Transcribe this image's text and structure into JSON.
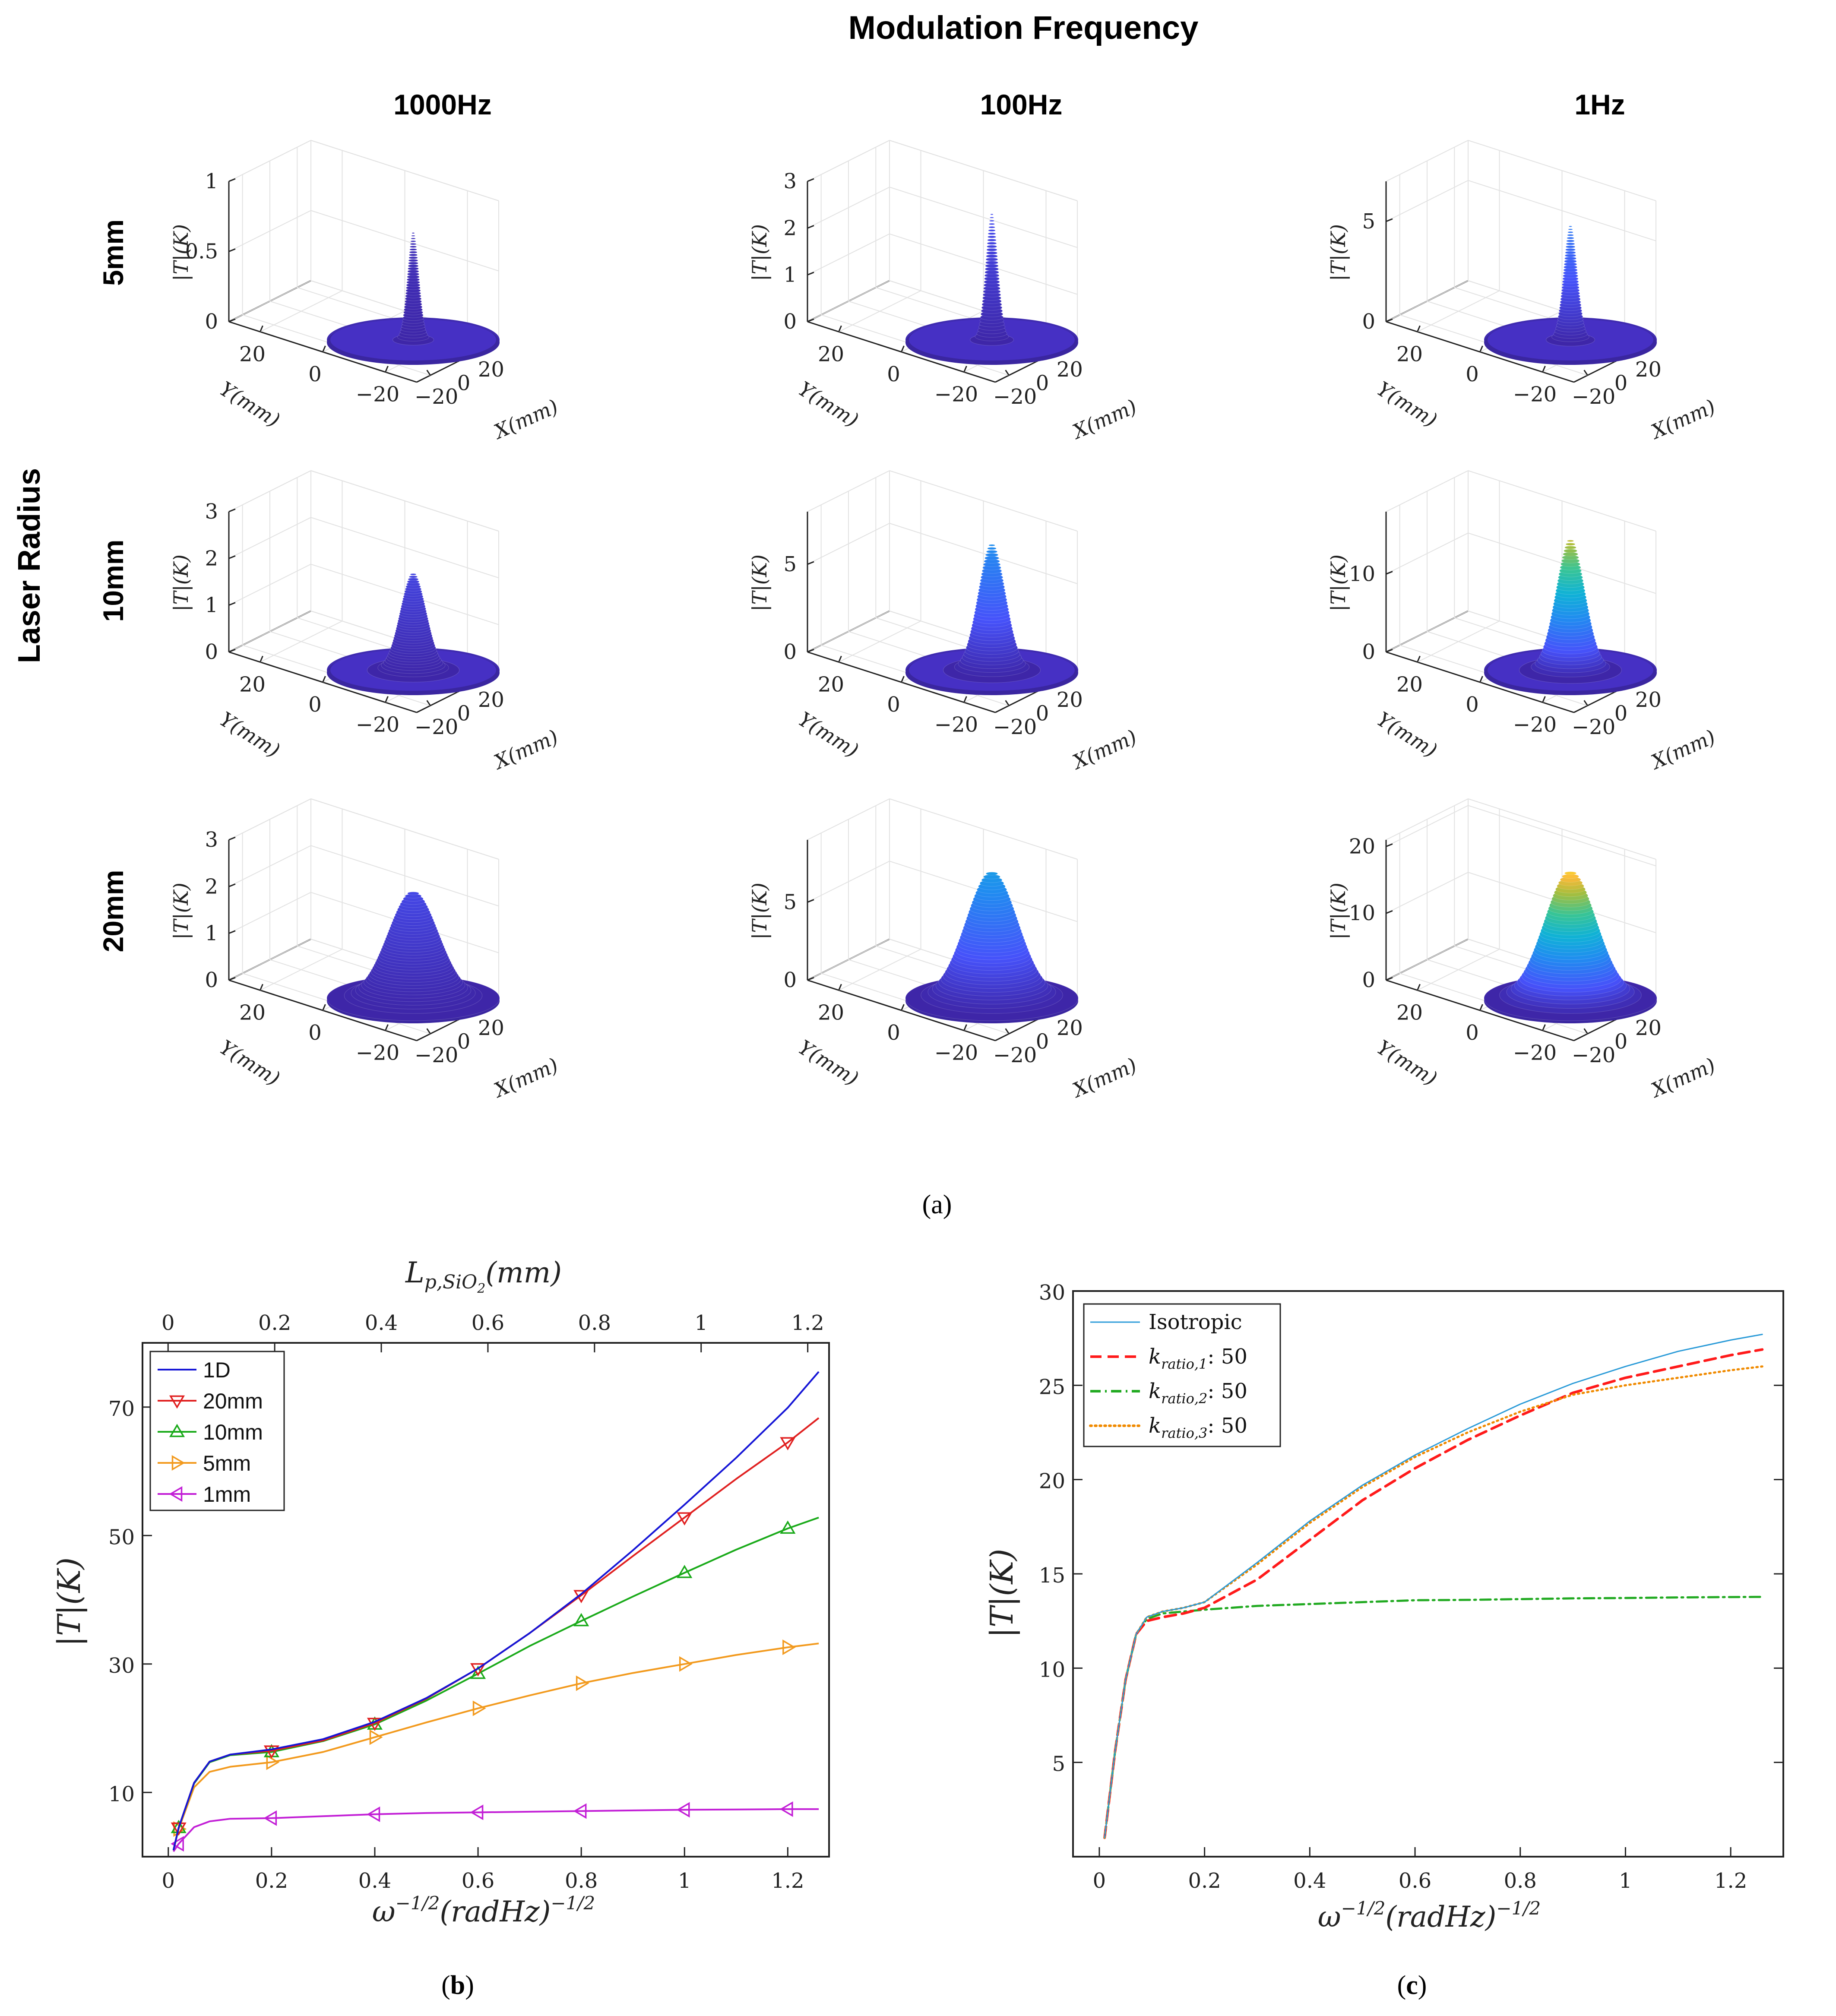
{
  "figure_a": {
    "title": "Modulation Frequency",
    "row_header": "Laser Radius",
    "columns": [
      "1000Hz",
      "100Hz",
      "1Hz"
    ],
    "rows": [
      "5mm",
      "10mm",
      "20mm"
    ],
    "caption": "(a)",
    "z_label": "|T|(K)",
    "x_label": "X(mm)",
    "y_label": "Y(mm)",
    "xy_ticks": [
      "20",
      "0",
      "−20"
    ]
  },
  "figure_b": {
    "caption": "(b)",
    "legend": [
      "1D",
      "20mm",
      "10mm",
      "5mm",
      "1mm"
    ],
    "colors": {
      "1D": "#1515d6",
      "20mm": "#e02020",
      "10mm": "#1aaa1a",
      "5mm": "#f29a1e",
      "1mm": "#c21fd6"
    }
  },
  "figure_c": {
    "caption": "(c)",
    "legend": [
      "Isotropic",
      "k_ratio,1: 50",
      "k_ratio,2: 50",
      "k_ratio,3: 50"
    ],
    "colors": {
      "Isotropic": "#2b9bd8",
      "k1": "#ff1a1a",
      "k2": "#22aa22",
      "k3": "#f08a00"
    }
  },
  "chart_data": [
    {
      "type": "surface3d",
      "title": "Modulation Frequency",
      "panels": [
        {
          "row": "5mm",
          "column": "1000Hz",
          "zlim": [
            0,
            1
          ],
          "zticks": [
            0,
            0.5,
            1
          ],
          "peak": 0.78,
          "sigma_mm": 1.6
        },
        {
          "row": "5mm",
          "column": "100Hz",
          "zlim": [
            0,
            3
          ],
          "zticks": [
            0,
            1,
            2,
            3
          ],
          "peak": 2.75,
          "sigma_mm": 1.7
        },
        {
          "row": "5mm",
          "column": "1Hz",
          "zlim": [
            0,
            7
          ],
          "zticks": [
            0,
            5
          ],
          "peak": 5.8,
          "sigma_mm": 1.9
        },
        {
          "row": "10mm",
          "column": "1000Hz",
          "zlim": [
            0,
            3
          ],
          "zticks": [
            0,
            1,
            2,
            3
          ],
          "peak": 2.1,
          "sigma_mm": 3.6
        },
        {
          "row": "10mm",
          "column": "100Hz",
          "zlim": [
            0,
            8
          ],
          "zticks": [
            0,
            5
          ],
          "peak": 7.3,
          "sigma_mm": 3.8
        },
        {
          "row": "10mm",
          "column": "1Hz",
          "zlim": [
            0,
            18
          ],
          "zticks": [
            0,
            10
          ],
          "peak": 17.0,
          "sigma_mm": 4.0
        },
        {
          "row": "20mm",
          "column": "1000Hz",
          "zlim": [
            0,
            3
          ],
          "zticks": [
            0,
            1,
            2,
            3
          ],
          "peak": 2.3,
          "sigma_mm": 7.0
        },
        {
          "row": "20mm",
          "column": "100Hz",
          "zlim": [
            0,
            9
          ],
          "zticks": [
            0,
            5
          ],
          "peak": 8.2,
          "sigma_mm": 7.2
        },
        {
          "row": "20mm",
          "column": "1Hz",
          "zlim": [
            0,
            21
          ],
          "zticks": [
            0,
            10,
            20
          ],
          "peak": 19.2,
          "sigma_mm": 7.2
        }
      ],
      "xlabel": "X(mm)",
      "ylabel": "Y(mm)",
      "zlabel": "|T|(K)",
      "xlim": [
        -30,
        30
      ],
      "ylim": [
        -30,
        30
      ],
      "xyticks": [
        -20,
        0,
        20
      ]
    },
    {
      "type": "line",
      "xlabel": "ω^{-1/2}(radHz)^{-1/2}",
      "ylabel": "|T|(K)",
      "top_xlabel": "L_p,SiO2(mm)",
      "xlim": [
        -0.05,
        1.28
      ],
      "ylim": [
        0,
        80
      ],
      "xticks": [
        0,
        0.2,
        0.4,
        0.6,
        0.8,
        1,
        1.2
      ],
      "xticklabels": [
        "0",
        "0.2",
        "0.4",
        "0.6",
        "0.8",
        "1",
        "1.2"
      ],
      "yticks": [
        10,
        30,
        50,
        70
      ],
      "top_ticks": [
        "0",
        "0.2",
        "0.4",
        "0.6",
        "0.8",
        "1",
        "1.2"
      ],
      "top_xlim": [
        -0.048,
        1.24
      ],
      "legend_position": "top-left",
      "series": [
        {
          "name": "1D",
          "marker": "none",
          "x": [
            0.01,
            0.02,
            0.05,
            0.08,
            0.12,
            0.2,
            0.3,
            0.4,
            0.5,
            0.6,
            0.7,
            0.8,
            0.9,
            1.0,
            1.1,
            1.2,
            1.26
          ],
          "y": [
            1.0,
            4.5,
            11.5,
            14.8,
            15.9,
            16.7,
            18.3,
            21.0,
            24.7,
            29.3,
            34.8,
            40.9,
            47.7,
            54.8,
            62.1,
            69.9,
            75.5
          ]
        },
        {
          "name": "20mm",
          "marker": "triangle-down",
          "markers_x": [
            0.02,
            0.2,
            0.4,
            0.6,
            0.8,
            1.0,
            1.2
          ],
          "x": [
            0.01,
            0.02,
            0.05,
            0.08,
            0.12,
            0.2,
            0.3,
            0.4,
            0.5,
            0.6,
            0.7,
            0.8,
            0.9,
            1.0,
            1.1,
            1.2,
            1.26
          ],
          "y": [
            1.0,
            4.5,
            11.5,
            14.8,
            15.9,
            16.5,
            18.1,
            20.8,
            24.6,
            29.3,
            34.8,
            40.7,
            46.8,
            52.8,
            58.8,
            64.5,
            68.3
          ]
        },
        {
          "name": "10mm",
          "marker": "triangle-up",
          "markers_x": [
            0.02,
            0.2,
            0.4,
            0.6,
            0.8,
            1.0,
            1.2
          ],
          "x": [
            0.01,
            0.02,
            0.05,
            0.08,
            0.12,
            0.2,
            0.3,
            0.4,
            0.5,
            0.6,
            0.7,
            0.8,
            0.9,
            1.0,
            1.1,
            1.2,
            1.26
          ],
          "y": [
            1.0,
            4.5,
            11.4,
            14.7,
            15.8,
            16.3,
            18.0,
            20.6,
            24.3,
            28.5,
            32.8,
            36.7,
            40.5,
            44.2,
            47.8,
            51.1,
            52.8
          ]
        },
        {
          "name": "5mm",
          "marker": "triangle-right",
          "markers_x": [
            0.02,
            0.2,
            0.4,
            0.6,
            0.8,
            1.0,
            1.2
          ],
          "x": [
            0.01,
            0.02,
            0.05,
            0.08,
            0.12,
            0.2,
            0.3,
            0.4,
            0.5,
            0.6,
            0.7,
            0.8,
            0.9,
            1.0,
            1.1,
            1.2,
            1.26
          ],
          "y": [
            1.0,
            4.3,
            10.8,
            13.2,
            14.0,
            14.7,
            16.3,
            18.6,
            20.9,
            23.1,
            25.1,
            27.0,
            28.6,
            30.0,
            31.4,
            32.6,
            33.2
          ]
        },
        {
          "name": "1mm",
          "marker": "triangle-left",
          "markers_x": [
            0.02,
            0.2,
            0.4,
            0.6,
            0.8,
            1.0,
            1.2
          ],
          "x": [
            0.01,
            0.02,
            0.05,
            0.08,
            0.12,
            0.2,
            0.3,
            0.4,
            0.5,
            0.6,
            0.7,
            0.8,
            0.9,
            1.0,
            1.1,
            1.2,
            1.26
          ],
          "y": [
            0.8,
            2.0,
            4.6,
            5.5,
            5.9,
            6.0,
            6.3,
            6.6,
            6.8,
            6.9,
            7.0,
            7.1,
            7.2,
            7.3,
            7.35,
            7.4,
            7.4
          ]
        }
      ]
    },
    {
      "type": "line",
      "xlabel": "ω^{-1/2}(radHz)^{-1/2}",
      "ylabel": "|T|(K)",
      "xlim": [
        -0.05,
        1.3
      ],
      "ylim": [
        0,
        30
      ],
      "xticks": [
        0,
        0.2,
        0.4,
        0.6,
        0.8,
        1,
        1.2
      ],
      "xticklabels": [
        "0",
        "0.2",
        "0.4",
        "0.6",
        "0.8",
        "1",
        "1.2"
      ],
      "yticks": [
        5,
        10,
        15,
        20,
        25,
        30
      ],
      "legend_position": "top-left",
      "series": [
        {
          "name": "Isotropic",
          "style": "solid",
          "x": [
            0.01,
            0.03,
            0.05,
            0.07,
            0.09,
            0.12,
            0.16,
            0.2,
            0.3,
            0.4,
            0.5,
            0.6,
            0.7,
            0.8,
            0.9,
            1.0,
            1.1,
            1.2,
            1.26
          ],
          "y": [
            1.0,
            5.6,
            9.4,
            11.8,
            12.7,
            13.0,
            13.2,
            13.5,
            15.6,
            17.8,
            19.7,
            21.3,
            22.7,
            24.0,
            25.1,
            26.0,
            26.8,
            27.4,
            27.7
          ]
        },
        {
          "name": "k_ratio,1: 50",
          "style": "dashed",
          "x": [
            0.01,
            0.03,
            0.05,
            0.07,
            0.09,
            0.12,
            0.16,
            0.2,
            0.3,
            0.4,
            0.5,
            0.6,
            0.7,
            0.8,
            0.9,
            1.0,
            1.1,
            1.2,
            1.26
          ],
          "y": [
            1.0,
            5.6,
            9.4,
            11.8,
            12.5,
            12.7,
            12.9,
            13.2,
            14.7,
            16.8,
            18.9,
            20.6,
            22.1,
            23.4,
            24.6,
            25.4,
            26.0,
            26.6,
            26.9
          ]
        },
        {
          "name": "k_ratio,2: 50",
          "style": "dashdot",
          "x": [
            0.01,
            0.03,
            0.05,
            0.07,
            0.09,
            0.12,
            0.16,
            0.2,
            0.3,
            0.4,
            0.5,
            0.6,
            0.7,
            0.8,
            0.9,
            1.0,
            1.1,
            1.2,
            1.26
          ],
          "y": [
            1.0,
            5.6,
            9.4,
            11.8,
            12.6,
            12.9,
            13.0,
            13.1,
            13.3,
            13.4,
            13.5,
            13.6,
            13.62,
            13.66,
            13.7,
            13.72,
            13.75,
            13.77,
            13.78
          ]
        },
        {
          "name": "k_ratio,3: 50",
          "style": "dotted",
          "x": [
            0.01,
            0.03,
            0.05,
            0.07,
            0.09,
            0.12,
            0.16,
            0.2,
            0.3,
            0.4,
            0.5,
            0.6,
            0.7,
            0.8,
            0.9,
            1.0,
            1.1,
            1.2,
            1.26
          ],
          "y": [
            1.0,
            5.6,
            9.4,
            11.8,
            12.7,
            13.0,
            13.2,
            13.5,
            15.5,
            17.7,
            19.6,
            21.2,
            22.5,
            23.6,
            24.5,
            25.0,
            25.4,
            25.8,
            26.0
          ]
        }
      ]
    }
  ]
}
